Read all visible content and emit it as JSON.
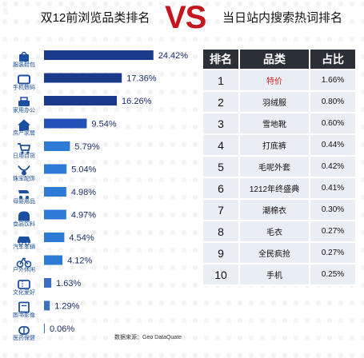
{
  "header": {
    "left_title": "双12前浏览品类排名",
    "vs": "VS",
    "right_title": "当日站内搜索热词排名"
  },
  "chart_data": {
    "type": "bar",
    "orientation": "horizontal",
    "categories": [
      "服装鞋包",
      "手机数码",
      "家用办公",
      "房产家居",
      "日用百货",
      "珠宝配饰",
      "母婴用品",
      "食品饮料",
      "汽车车辆",
      "户外休闲",
      "文化爱好",
      "图书影像",
      "医药保健"
    ],
    "values": [
      24.42,
      17.36,
      16.26,
      9.54,
      5.79,
      5.04,
      4.98,
      4.97,
      4.54,
      4.12,
      1.63,
      1.29,
      0.06
    ],
    "value_labels": [
      "24.42%",
      "17.36%",
      "16.26%",
      "9.54%",
      "5.79%",
      "5.04%",
      "4.98%",
      "4.97%",
      "4.54%",
      "4.12%",
      "1.63%",
      "1.29%",
      "0.06%"
    ],
    "icons": [
      "bag-icon",
      "phone-icon",
      "printer-icon",
      "house-icon",
      "cart-icon",
      "necklace-icon",
      "stroller-icon",
      "bread-icon",
      "car-icon",
      "bicycle-icon",
      "ticket-icon",
      "book-icon",
      "pill-icon"
    ],
    "xlim": [
      0,
      25
    ],
    "grid": false,
    "legend": "none",
    "colors": {
      "bar_dark": "#1a3a8c",
      "bar_mid": "#2050b8",
      "bar_light": "#2e7bd6",
      "bar_faint": "#3c6fbf",
      "icon": "#1c4fa0"
    }
  },
  "footer": {
    "source": "数据来源：Geo DataQuate"
  },
  "table": {
    "headers": [
      "排名",
      "品类",
      "占比"
    ],
    "rows": [
      {
        "rank": "1",
        "category": "特价",
        "share": "1.66%"
      },
      {
        "rank": "2",
        "category": "羽绒服",
        "share": "0.80%"
      },
      {
        "rank": "3",
        "category": "雪地靴",
        "share": "0.60%"
      },
      {
        "rank": "4",
        "category": "打底裤",
        "share": "0.44%"
      },
      {
        "rank": "5",
        "category": "毛呢外套",
        "share": "0.42%"
      },
      {
        "rank": "6",
        "category": "1212年终盛典",
        "share": "0.41%"
      },
      {
        "rank": "7",
        "category": "潮棉衣",
        "share": "0.30%"
      },
      {
        "rank": "8",
        "category": "毛衣",
        "share": "0.27%"
      },
      {
        "rank": "9",
        "category": "全民疯抢",
        "share": "0.27%"
      },
      {
        "rank": "10",
        "category": "手机",
        "share": "0.25%"
      }
    ],
    "highlight_color": "#e2231a"
  }
}
